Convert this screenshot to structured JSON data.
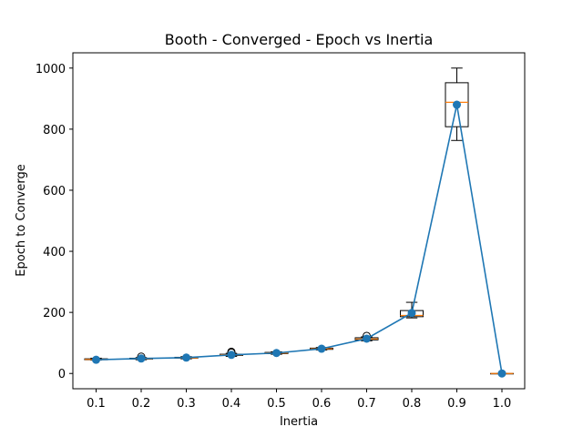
{
  "chart_data": {
    "type": "line",
    "title": "Booth - Converged - Epoch vs Inertia",
    "xlabel": "Inertia",
    "ylabel": "Epoch to Converge",
    "categories": [
      "0.1",
      "0.2",
      "0.3",
      "0.4",
      "0.5",
      "0.6",
      "0.7",
      "0.8",
      "0.9",
      "1.0"
    ],
    "ylim": [
      -50,
      1050
    ],
    "yticks": [
      0,
      200,
      400,
      600,
      800,
      1000
    ],
    "grid": false,
    "series": [
      {
        "values": [
          45,
          49,
          52,
          61,
          67,
          81,
          114,
          198,
          880,
          0
        ]
      }
    ],
    "boxplots": [
      {
        "category": "0.1",
        "q1": 45,
        "median": 46,
        "q3": 48,
        "whisker_low": 44,
        "whisker_high": 50,
        "outliers": []
      },
      {
        "category": "0.2",
        "q1": 47,
        "median": 48,
        "q3": 50,
        "whisker_low": 45,
        "whisker_high": 52,
        "outliers": [
          55
        ]
      },
      {
        "category": "0.3",
        "q1": 50,
        "median": 51,
        "q3": 53,
        "whisker_low": 48,
        "whisker_high": 55,
        "outliers": []
      },
      {
        "category": "0.4",
        "q1": 59,
        "median": 61,
        "q3": 63,
        "whisker_low": 56,
        "whisker_high": 66,
        "outliers": [
          68,
          71
        ]
      },
      {
        "category": "0.5",
        "q1": 65,
        "median": 67,
        "q3": 69,
        "whisker_low": 63,
        "whisker_high": 71,
        "outliers": []
      },
      {
        "category": "0.6",
        "q1": 79,
        "median": 81,
        "q3": 83,
        "whisker_low": 77,
        "whisker_high": 85,
        "outliers": []
      },
      {
        "category": "0.7",
        "q1": 110,
        "median": 113,
        "q3": 117,
        "whisker_low": 107,
        "whisker_high": 120,
        "outliers": [
          123
        ]
      },
      {
        "category": "0.8",
        "q1": 186,
        "median": 190,
        "q3": 206,
        "whisker_low": 182,
        "whisker_high": 233,
        "outliers": []
      },
      {
        "category": "0.9",
        "q1": 808,
        "median": 888,
        "q3": 952,
        "whisker_low": 763,
        "whisker_high": 1000,
        "outliers": []
      },
      {
        "category": "1.0",
        "q1": 0,
        "median": 0,
        "q3": 0,
        "whisker_low": 0,
        "whisker_high": 0,
        "outliers": []
      }
    ],
    "colors": {
      "line": "#1f77b4",
      "median": "#ff7f0e",
      "box": "#000000"
    }
  }
}
